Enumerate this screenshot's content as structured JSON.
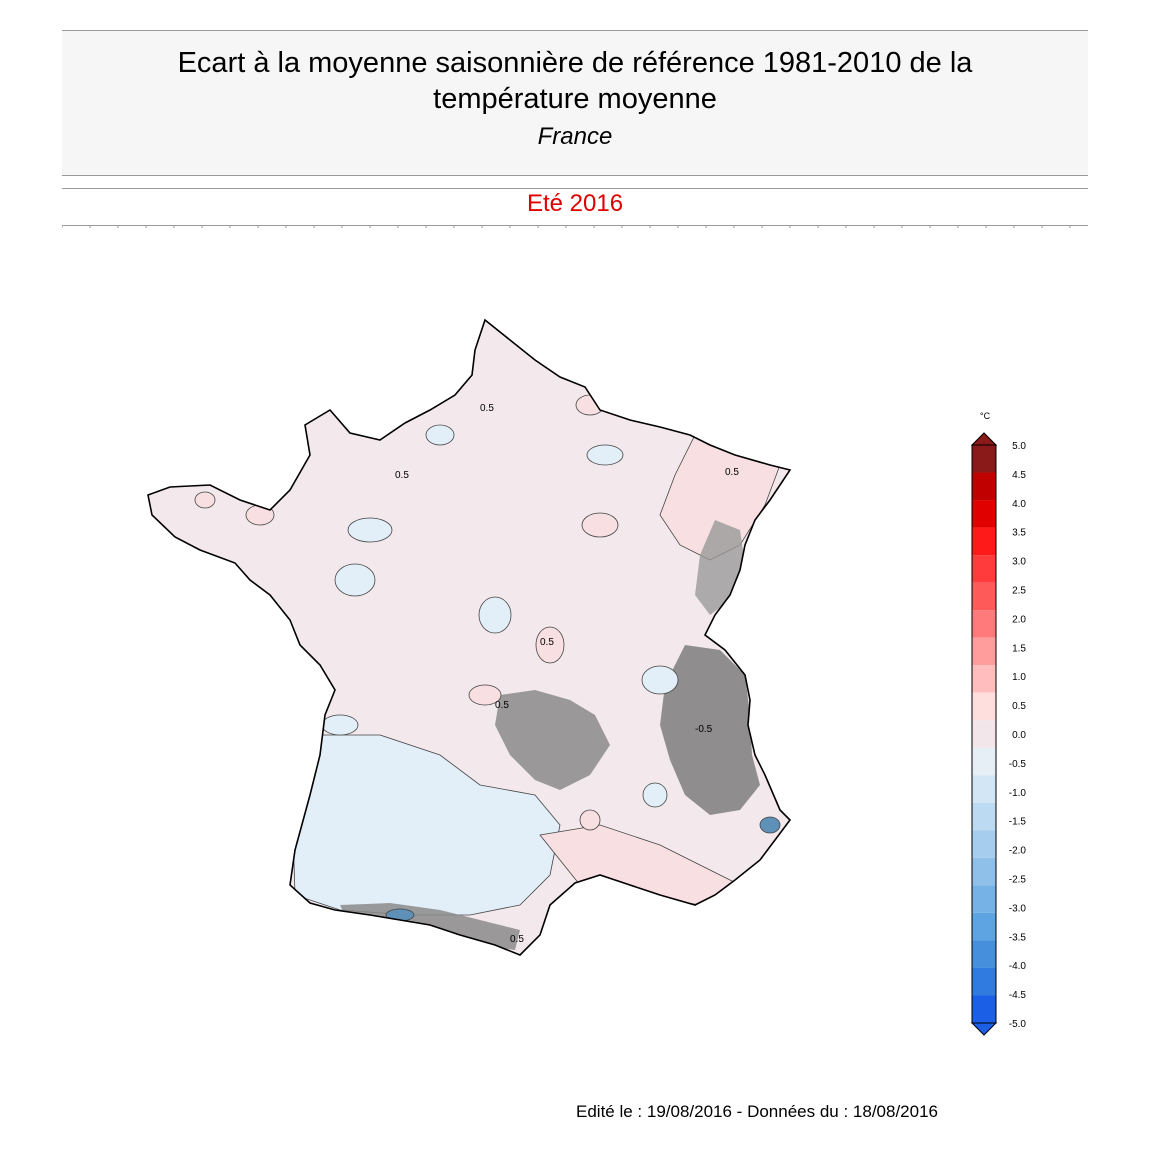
{
  "header": {
    "title_line1": "Ecart à la moyenne saisonnière de référence 1981-2010 de la",
    "title_line2": "température moyenne",
    "region": "France"
  },
  "period": "Eté 2016",
  "contour_label": "0.5",
  "contour_label_neg": "-0.5",
  "legend": {
    "unit": "°C",
    "ticks": [
      "5.0",
      "4.5",
      "4.0",
      "3.5",
      "3.0",
      "2.5",
      "2.0",
      "1.5",
      "1.0",
      "0.5",
      "0.0",
      "-0.5",
      "-1.0",
      "-1.5",
      "-2.0",
      "-2.5",
      "-3.0",
      "-3.5",
      "-4.0",
      "-4.5",
      "-5.0"
    ],
    "colors": [
      "#8a1a1a",
      "#c00000",
      "#e00000",
      "#ff1a1a",
      "#ff3b3b",
      "#ff5a5a",
      "#ff7a7a",
      "#ff9c9c",
      "#ffbdbd",
      "#ffdede",
      "#f2e6ea",
      "#e6eef6",
      "#d2e6f6",
      "#bcdaf2",
      "#a6cdee",
      "#8ec0ea",
      "#76b2e6",
      "#5ea3e2",
      "#468fdd",
      "#2f7be0",
      "#1a5fe6"
    ]
  },
  "footer": {
    "edit_label": "Edité le : 19/08/2016 - Données du : 18/08/2016"
  }
}
